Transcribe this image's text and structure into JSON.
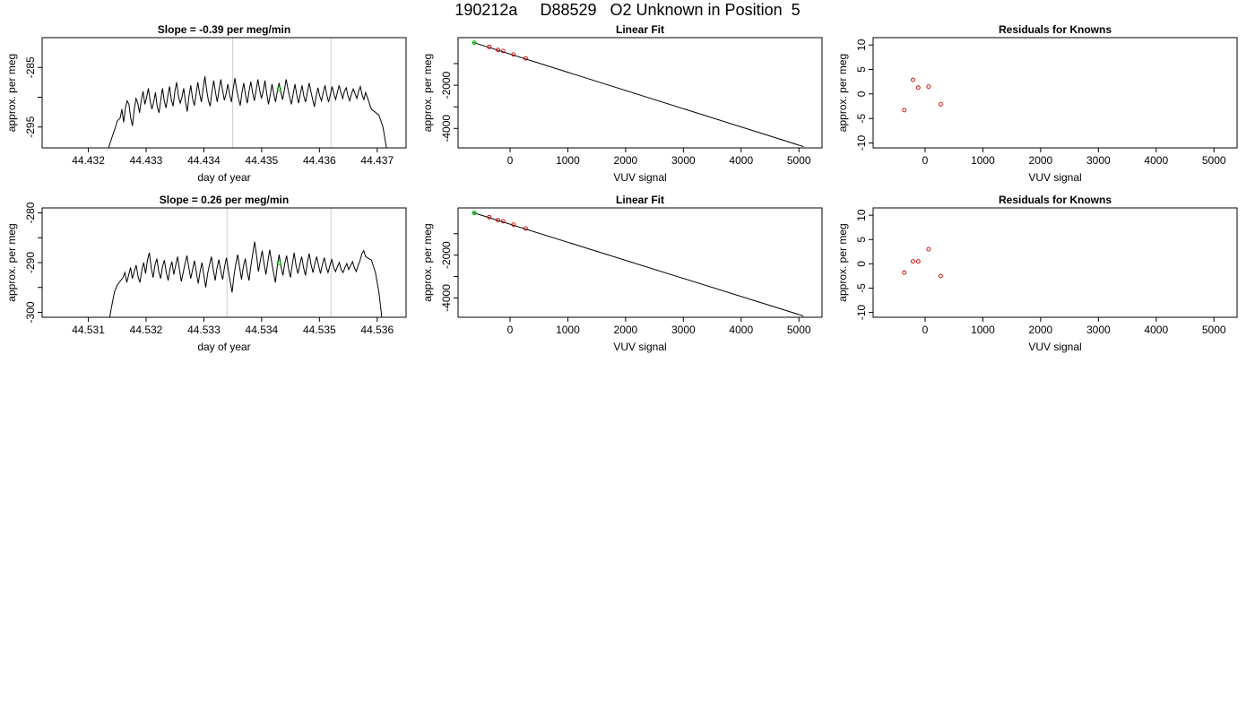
{
  "page_title": "190212a     D88529   O2 Unknown in Position  5",
  "chart_data": [
    {
      "id": "ts1",
      "type": "line",
      "title": "Slope =  -0.39  per meg/min",
      "xlabel": "day of year",
      "ylabel": "approx. per meg",
      "xlim": [
        44.4312,
        44.4375
      ],
      "ylim": [
        -298.5,
        -280
      ],
      "xticks": [
        44.432,
        44.433,
        44.434,
        44.435,
        44.436,
        44.437
      ],
      "xtick_labels": [
        "44.432",
        "44.433",
        "44.434",
        "44.435",
        "44.436",
        "44.437"
      ],
      "yticks": [
        -295,
        -290,
        -285
      ],
      "ytick_labels": [
        "-295",
        "",
        "-285"
      ],
      "vlines": [
        44.4345,
        44.4362
      ],
      "vline_color": "#cccccc",
      "marker": {
        "x": 44.4353,
        "y": -288.6,
        "color": "#00cc00"
      },
      "line_color": "#000000",
      "series": {
        "x_start": 44.43235,
        "x_end": 44.43716,
        "edges": [
          [
            44.43235,
            -298.5
          ],
          [
            44.4324,
            -297.0
          ],
          [
            44.43247,
            -295.0
          ],
          [
            44.4325,
            -294.0
          ]
        ],
        "tail": [
          [
            44.4369,
            -292.0
          ],
          [
            44.43703,
            -293.0
          ],
          [
            44.4371,
            -295.0
          ],
          [
            44.43716,
            -298.5
          ]
        ],
        "body_start": 44.43255,
        "body_end": 44.4368,
        "values": [
          -293.5,
          -292.0,
          -294.2,
          -291.8,
          -290.6,
          -291.2,
          -293.5,
          -294.8,
          -292.0,
          -290.2,
          -291.0,
          -292.6,
          -290.5,
          -289.0,
          -291.2,
          -290.0,
          -288.5,
          -290.6,
          -292.0,
          -290.8,
          -289.2,
          -291.6,
          -292.6,
          -290.5,
          -288.5,
          -290.6,
          -291.8,
          -289.8,
          -288.2,
          -290.4,
          -291.5,
          -289.0,
          -287.5,
          -289.8,
          -291.0,
          -290.0,
          -288.5,
          -290.8,
          -292.4,
          -289.8,
          -288.0,
          -290.2,
          -291.4,
          -289.5,
          -287.5,
          -289.4,
          -290.8,
          -288.6,
          -286.5,
          -288.8,
          -290.6,
          -291.5,
          -289.0,
          -287.2,
          -289.2,
          -290.8,
          -288.8,
          -287.0,
          -288.8,
          -290.5,
          -289.4,
          -287.8,
          -289.6,
          -290.8,
          -288.6,
          -286.8,
          -288.8,
          -290.2,
          -291.4,
          -289.2,
          -287.6,
          -289.6,
          -291.0,
          -289.0,
          -287.4,
          -289.2,
          -290.6,
          -288.8,
          -287.0,
          -288.8,
          -290.2,
          -289.0,
          -287.2,
          -289.4,
          -291.2,
          -289.6,
          -287.8,
          -289.5,
          -290.8,
          -289.0,
          -287.6,
          -289.2,
          -290.4,
          -288.8,
          -287.0,
          -288.6,
          -290.0,
          -291.2,
          -289.4,
          -287.8,
          -289.6,
          -291.0,
          -289.5,
          -288.0,
          -289.8,
          -290.8,
          -289.2,
          -287.6,
          -289.0,
          -290.4,
          -291.6,
          -289.8,
          -288.4,
          -289.8,
          -290.6,
          -289.2,
          -288.0,
          -289.6,
          -290.8,
          -289.6,
          -288.2,
          -289.4,
          -290.4,
          -289.2,
          -288.0,
          -289.2,
          -290.2,
          -289.0,
          -288.4,
          -289.8,
          -290.6,
          -289.4,
          -288.6,
          -289.4,
          -290.2,
          -289.0,
          -288.2,
          -289.6,
          -290.4,
          -289.2
        ]
      }
    },
    {
      "id": "fit1",
      "type": "scatter",
      "title": "Linear Fit",
      "xlabel": "VUV signal",
      "ylabel": "approx. per meg",
      "xlim": [
        -900,
        5400
      ],
      "ylim": [
        -4900,
        200
      ],
      "xticks": [
        0,
        1000,
        2000,
        3000,
        4000,
        5000
      ],
      "xtick_labels": [
        "0",
        "1000",
        "2000",
        "3000",
        "4000",
        "5000"
      ],
      "yticks": [
        -4000,
        -3000,
        -2000,
        -1000
      ],
      "ytick_labels": [
        "-4000",
        "",
        "-2000",
        ""
      ],
      "fit_line": [
        [
          -640,
          -20
        ],
        [
          5080,
          -4840
        ]
      ],
      "points": [
        [
          -360,
          -230
        ],
        [
          -210,
          -370
        ],
        [
          -120,
          -420
        ],
        [
          60,
          -580
        ],
        [
          270,
          -760
        ]
      ],
      "point_color": "#cc0000",
      "marker": {
        "x": -620,
        "y": -30,
        "color": "#00cc00"
      }
    },
    {
      "id": "res1",
      "type": "scatter",
      "title": "Residuals for Knowns",
      "xlabel": "VUV signal",
      "ylabel": "approx. per meg",
      "xlim": [
        -900,
        5400
      ],
      "ylim": [
        -11,
        11.5
      ],
      "xticks": [
        0,
        1000,
        2000,
        3000,
        4000,
        5000
      ],
      "xtick_labels": [
        "0",
        "1000",
        "2000",
        "3000",
        "4000",
        "5000"
      ],
      "yticks": [
        -10,
        -5,
        0,
        5,
        10
      ],
      "ytick_labels": [
        "-10",
        "-5",
        "0",
        "5",
        "10"
      ],
      "points": [
        [
          -360,
          -3.3
        ],
        [
          -210,
          2.9
        ],
        [
          -120,
          1.3
        ],
        [
          60,
          1.5
        ],
        [
          270,
          -2.1
        ]
      ],
      "point_color": "#cc0000"
    },
    {
      "id": "ts2",
      "type": "line",
      "title": "Slope =  0.26  per meg/min",
      "xlabel": "day of year",
      "ylabel": "approx. per meg",
      "xlim": [
        44.5302,
        44.5365
      ],
      "ylim": [
        -301,
        -279
      ],
      "xticks": [
        44.531,
        44.532,
        44.533,
        44.534,
        44.535,
        44.536
      ],
      "xtick_labels": [
        "44.531",
        "44.532",
        "44.533",
        "44.534",
        "44.535",
        "44.536"
      ],
      "yticks": [
        -300,
        -295,
        -290,
        -285,
        -280
      ],
      "ytick_labels": [
        "-300",
        "",
        "-290",
        "",
        "-280"
      ],
      "vlines": [
        44.5334,
        44.5352
      ],
      "vline_color": "#cccccc",
      "marker": {
        "x": 44.5343,
        "y": -290.0,
        "color": "#00cc00"
      },
      "line_color": "#000000",
      "series": {
        "x_start": 44.53137,
        "x_end": 44.53608,
        "edges": [
          [
            44.53137,
            -301
          ],
          [
            44.5314,
            -299.0
          ],
          [
            44.53145,
            -296.0
          ],
          [
            44.5315,
            -294.5
          ]
        ],
        "tail": [
          [
            44.5359,
            -289.5
          ],
          [
            44.53597,
            -292.0
          ],
          [
            44.53603,
            -296.0
          ],
          [
            44.53608,
            -301
          ]
        ],
        "body_start": 44.5316,
        "body_end": 44.5358,
        "values": [
          -293.0,
          -292.0,
          -294.0,
          -292.5,
          -291.0,
          -293.2,
          -291.8,
          -290.5,
          -292.8,
          -294.0,
          -291.5,
          -290.0,
          -292.2,
          -289.5,
          -288.0,
          -291.0,
          -293.0,
          -290.5,
          -289.2,
          -291.8,
          -293.2,
          -290.8,
          -289.5,
          -292.0,
          -293.6,
          -291.2,
          -289.8,
          -292.4,
          -290.6,
          -288.8,
          -291.4,
          -293.8,
          -292.0,
          -290.2,
          -288.6,
          -291.0,
          -293.2,
          -291.4,
          -289.6,
          -292.0,
          -294.2,
          -291.8,
          -290.0,
          -292.6,
          -295.0,
          -292.2,
          -290.4,
          -288.8,
          -291.4,
          -293.6,
          -291.0,
          -289.4,
          -291.8,
          -293.4,
          -290.8,
          -289.0,
          -291.6,
          -293.8,
          -296.0,
          -292.6,
          -290.2,
          -288.4,
          -291.0,
          -293.4,
          -290.8,
          -289.2,
          -291.8,
          -293.6,
          -290.6,
          -288.2,
          -285.8,
          -288.6,
          -291.8,
          -289.6,
          -287.6,
          -290.2,
          -292.4,
          -289.8,
          -287.4,
          -289.8,
          -292.0,
          -294.0,
          -290.8,
          -288.4,
          -290.8,
          -292.6,
          -290.2,
          -288.6,
          -291.2,
          -293.0,
          -290.4,
          -288.0,
          -290.6,
          -292.2,
          -290.4,
          -288.8,
          -291.0,
          -292.6,
          -290.0,
          -288.2,
          -290.4,
          -292.0,
          -290.2,
          -288.8,
          -290.6,
          -292.2,
          -290.4,
          -289.0,
          -290.8,
          -292.0,
          -290.6,
          -289.4,
          -291.0,
          -291.8,
          -290.8,
          -290.0,
          -291.4,
          -292.0,
          -291.0,
          -290.2,
          -291.4,
          -290.6,
          -289.8,
          -291.0,
          -291.8,
          -290.6,
          -289.6,
          -288.2,
          -287.6,
          -288.8
        ]
      }
    },
    {
      "id": "fit2",
      "type": "scatter",
      "title": "Linear Fit",
      "xlabel": "VUV signal",
      "ylabel": "approx. per meg",
      "xlim": [
        -900,
        5400
      ],
      "ylim": [
        -4900,
        200
      ],
      "xticks": [
        0,
        1000,
        2000,
        3000,
        4000,
        5000
      ],
      "xtick_labels": [
        "0",
        "1000",
        "2000",
        "3000",
        "4000",
        "5000"
      ],
      "yticks": [
        -4000,
        -3000,
        -2000,
        -1000
      ],
      "ytick_labels": [
        "-4000",
        "",
        "-2000",
        ""
      ],
      "fit_line": [
        [
          -640,
          -20
        ],
        [
          5080,
          -4840
        ]
      ],
      "points": [
        [
          -360,
          -230
        ],
        [
          -210,
          -370
        ],
        [
          -120,
          -420
        ],
        [
          60,
          -580
        ],
        [
          270,
          -760
        ]
      ],
      "point_color": "#cc0000",
      "marker": {
        "x": -620,
        "y": -30,
        "color": "#00cc00"
      }
    },
    {
      "id": "res2",
      "type": "scatter",
      "title": "Residuals for Knowns",
      "xlabel": "VUV signal",
      "ylabel": "approx. per meg",
      "xlim": [
        -900,
        5400
      ],
      "ylim": [
        -11,
        11.5
      ],
      "xticks": [
        0,
        1000,
        2000,
        3000,
        4000,
        5000
      ],
      "xtick_labels": [
        "0",
        "1000",
        "2000",
        "3000",
        "4000",
        "5000"
      ],
      "yticks": [
        -10,
        -5,
        0,
        5,
        10
      ],
      "ytick_labels": [
        "-10",
        "-5",
        "0",
        "5",
        "10"
      ],
      "points": [
        [
          -360,
          -1.8
        ],
        [
          -210,
          0.5
        ],
        [
          -120,
          0.5
        ],
        [
          60,
          3.0
        ],
        [
          270,
          -2.5
        ]
      ],
      "point_color": "#cc0000"
    }
  ]
}
